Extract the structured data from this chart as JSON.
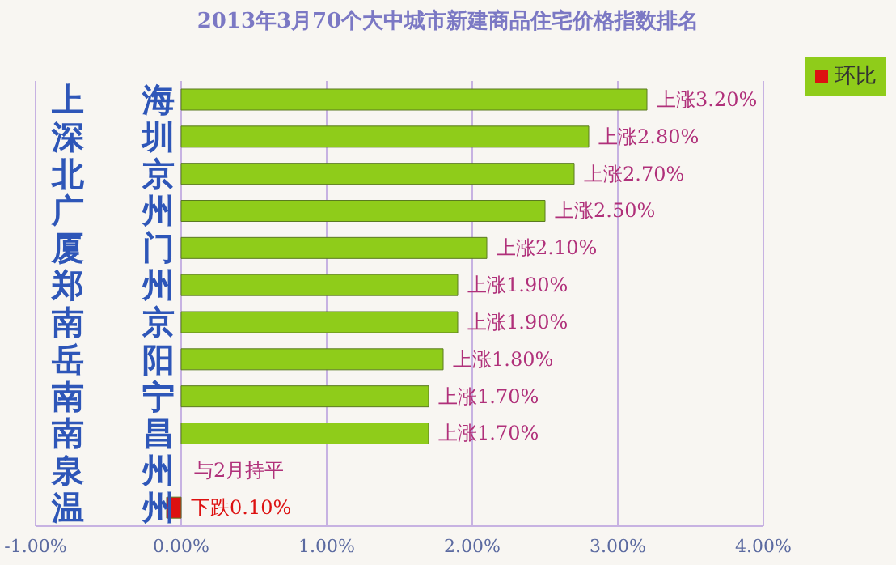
{
  "chart_data": {
    "type": "bar",
    "orientation": "horizontal",
    "title": "2013年3月70个大中城市新建商品住宅价格指数排名",
    "categories": [
      "上海",
      "深圳",
      "北京",
      "广州",
      "厦门",
      "郑州",
      "南京",
      "岳阳",
      "南宁",
      "南昌",
      "泉州",
      "温州"
    ],
    "series": [
      {
        "name": "环比",
        "values": [
          3.2,
          2.8,
          2.7,
          2.5,
          2.1,
          1.9,
          1.9,
          1.8,
          1.7,
          1.7,
          0,
          -0.1
        ],
        "colors": [
          "#8fcc1a",
          "#8fcc1a",
          "#8fcc1a",
          "#8fcc1a",
          "#8fcc1a",
          "#8fcc1a",
          "#8fcc1a",
          "#8fcc1a",
          "#8fcc1a",
          "#8fcc1a",
          "#8fcc1a",
          "#dd1111"
        ],
        "value_labels": [
          "上涨3.20%",
          "上涨2.80%",
          "上涨2.70%",
          "上涨2.50%",
          "上涨2.10%",
          "上涨1.90%",
          "上涨1.90%",
          "上涨1.80%",
          "上涨1.70%",
          "上涨1.70%",
          "与2月持平",
          "下跌0.10%"
        ]
      }
    ],
    "xlim": [
      -1,
      4
    ],
    "xticks": [
      {
        "value": -1,
        "label": "-1.00%"
      },
      {
        "value": 0,
        "label": "0.00%"
      },
      {
        "value": 1,
        "label": "1.00%"
      },
      {
        "value": 2,
        "label": "2.00%"
      },
      {
        "value": 3,
        "label": "3.00%"
      },
      {
        "value": 4,
        "label": "4.00%"
      }
    ],
    "grid": "x",
    "legend": "top right"
  }
}
